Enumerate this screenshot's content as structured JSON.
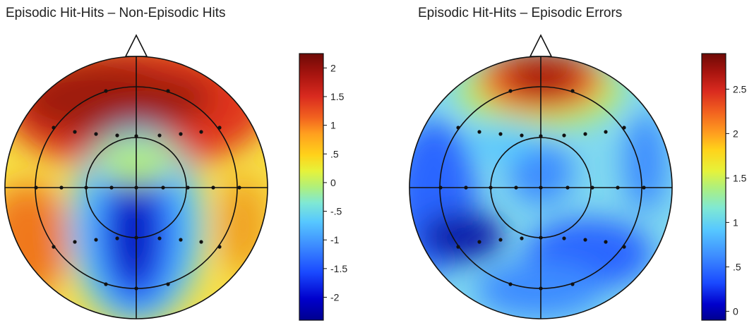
{
  "maps": [
    {
      "title": "Episodic Hit-Hits – Non-Episodic Hits",
      "colorbar_ticks": [
        "2",
        "1.5",
        "1",
        ".5",
        "0",
        "-.5",
        "-1",
        "-1.5",
        "-2"
      ],
      "colorbar_range": [
        -2.4,
        2.25
      ]
    },
    {
      "title": "Episodic Hit-Hits – Episodic Errors",
      "colorbar_ticks": [
        "2.5",
        "2",
        "1.5",
        "1",
        ".5",
        "0"
      ],
      "colorbar_range": [
        -0.1,
        2.9
      ]
    }
  ],
  "colormap": [
    "#00008f",
    "#0000cc",
    "#1a4aff",
    "#3d8cff",
    "#57c8ff",
    "#7fe8d4",
    "#b0f07a",
    "#e6f23a",
    "#ffd21a",
    "#ff9f1f",
    "#f2621f",
    "#d92a1f",
    "#a8140f",
    "#6e0a06"
  ]
}
